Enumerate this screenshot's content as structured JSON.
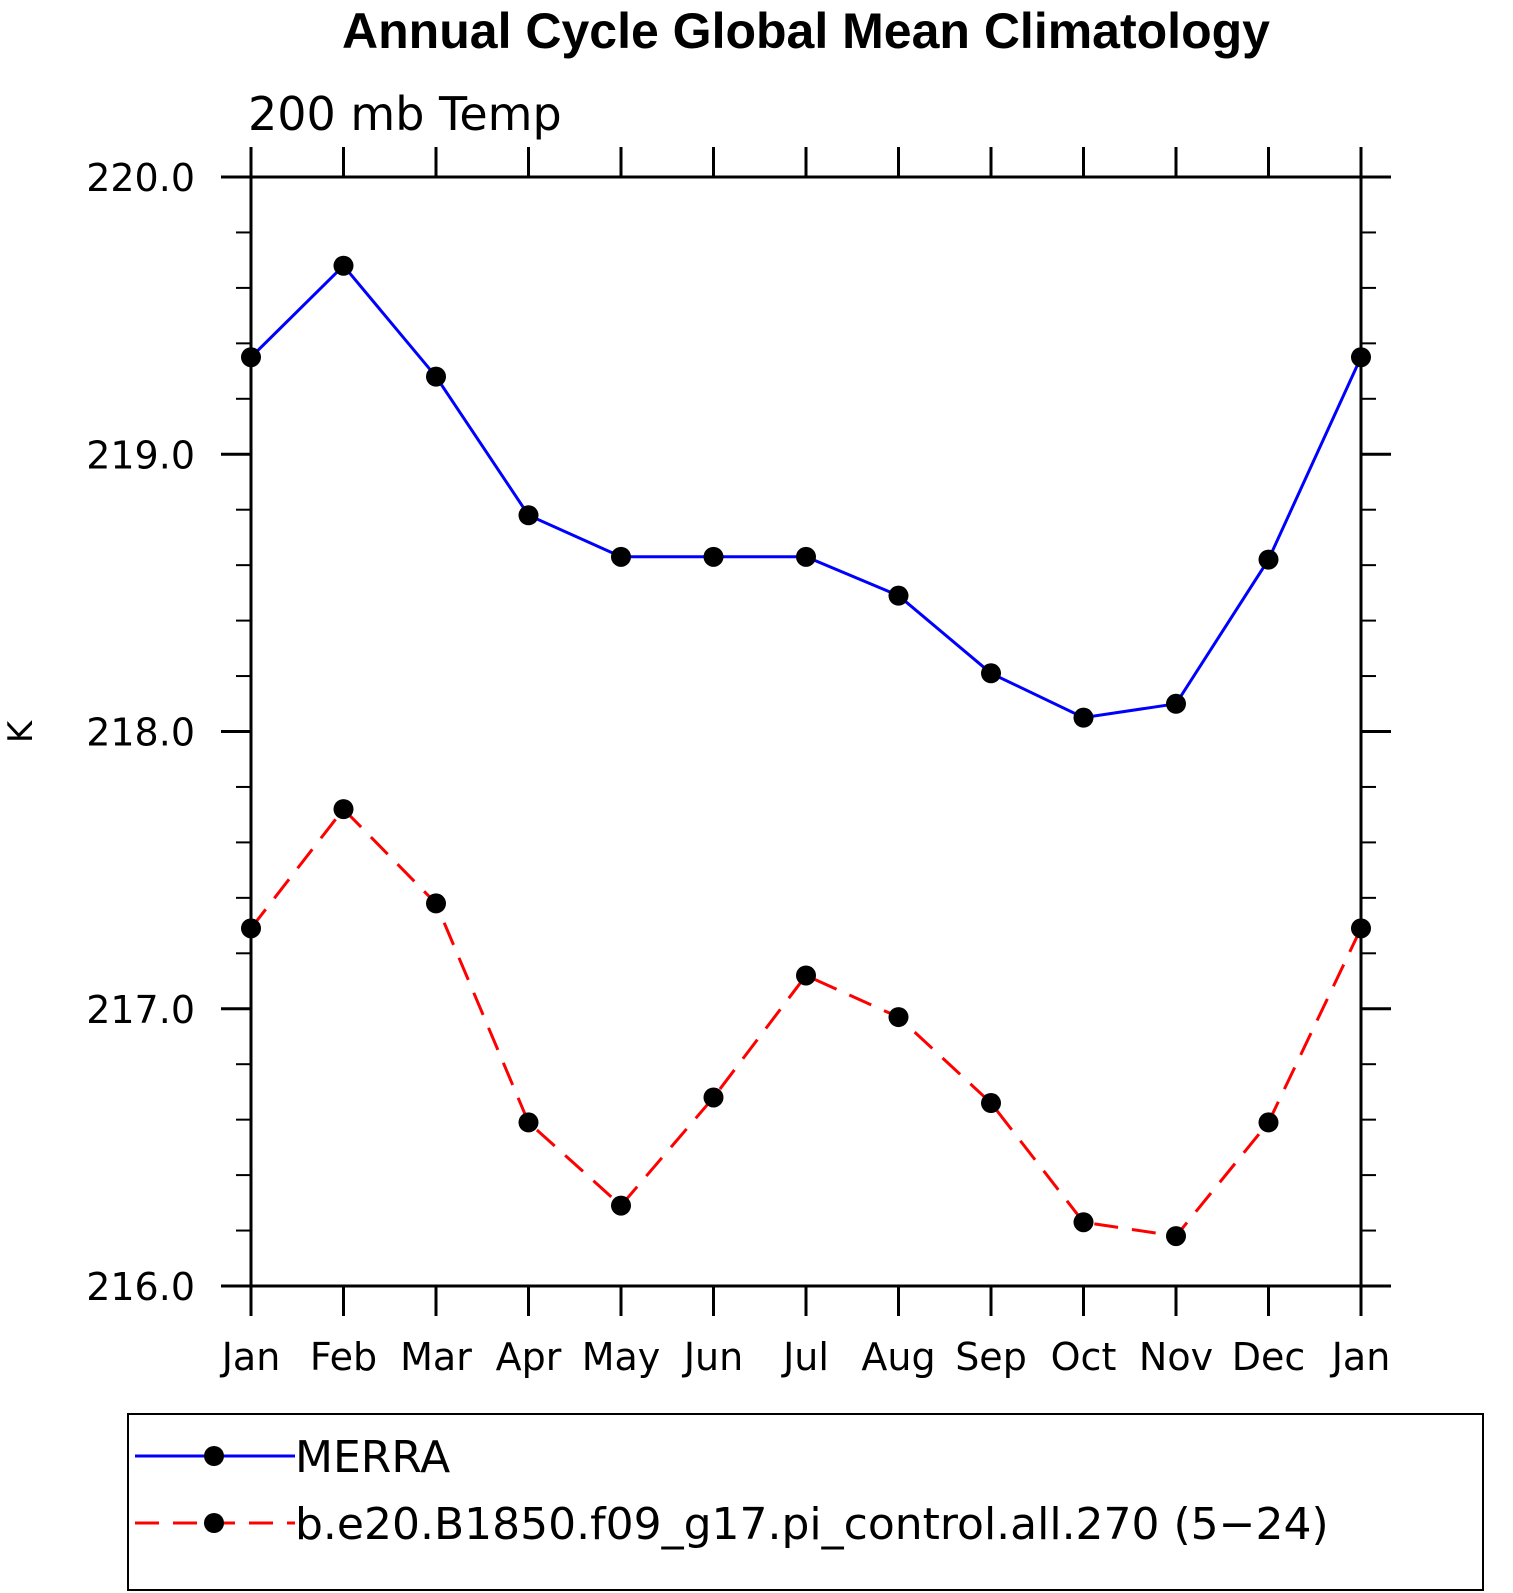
{
  "chart_data": {
    "type": "line",
    "title": "Annual Cycle Global Mean Climatology",
    "subtitle": "200 mb Temp",
    "xlabel": "",
    "ylabel": "K",
    "categories": [
      "Jan",
      "Feb",
      "Mar",
      "Apr",
      "May",
      "Jun",
      "Jul",
      "Aug",
      "Sep",
      "Oct",
      "Nov",
      "Dec",
      "Jan"
    ],
    "ylim": [
      216.0,
      220.0
    ],
    "yticks": [
      "216.0",
      "217.0",
      "218.0",
      "219.0",
      "220.0"
    ],
    "grid": false,
    "legend_position": "bottom",
    "series": [
      {
        "name": "MERRA",
        "color": "#0000ff",
        "line_style": "solid",
        "marker": "filled-circle",
        "values": [
          219.35,
          219.68,
          219.28,
          218.78,
          218.63,
          218.63,
          218.63,
          218.49,
          218.21,
          218.05,
          218.1,
          218.62,
          219.35
        ]
      },
      {
        "name": "b.e20.B1850.f09_g17.pi_control.all.270 (5−24)",
        "color": "#ff0000",
        "line_style": "dashed",
        "marker": "filled-circle",
        "values": [
          217.29,
          217.72,
          217.38,
          216.59,
          216.29,
          216.68,
          217.12,
          216.97,
          216.66,
          216.23,
          216.18,
          216.59,
          217.29
        ]
      }
    ]
  }
}
